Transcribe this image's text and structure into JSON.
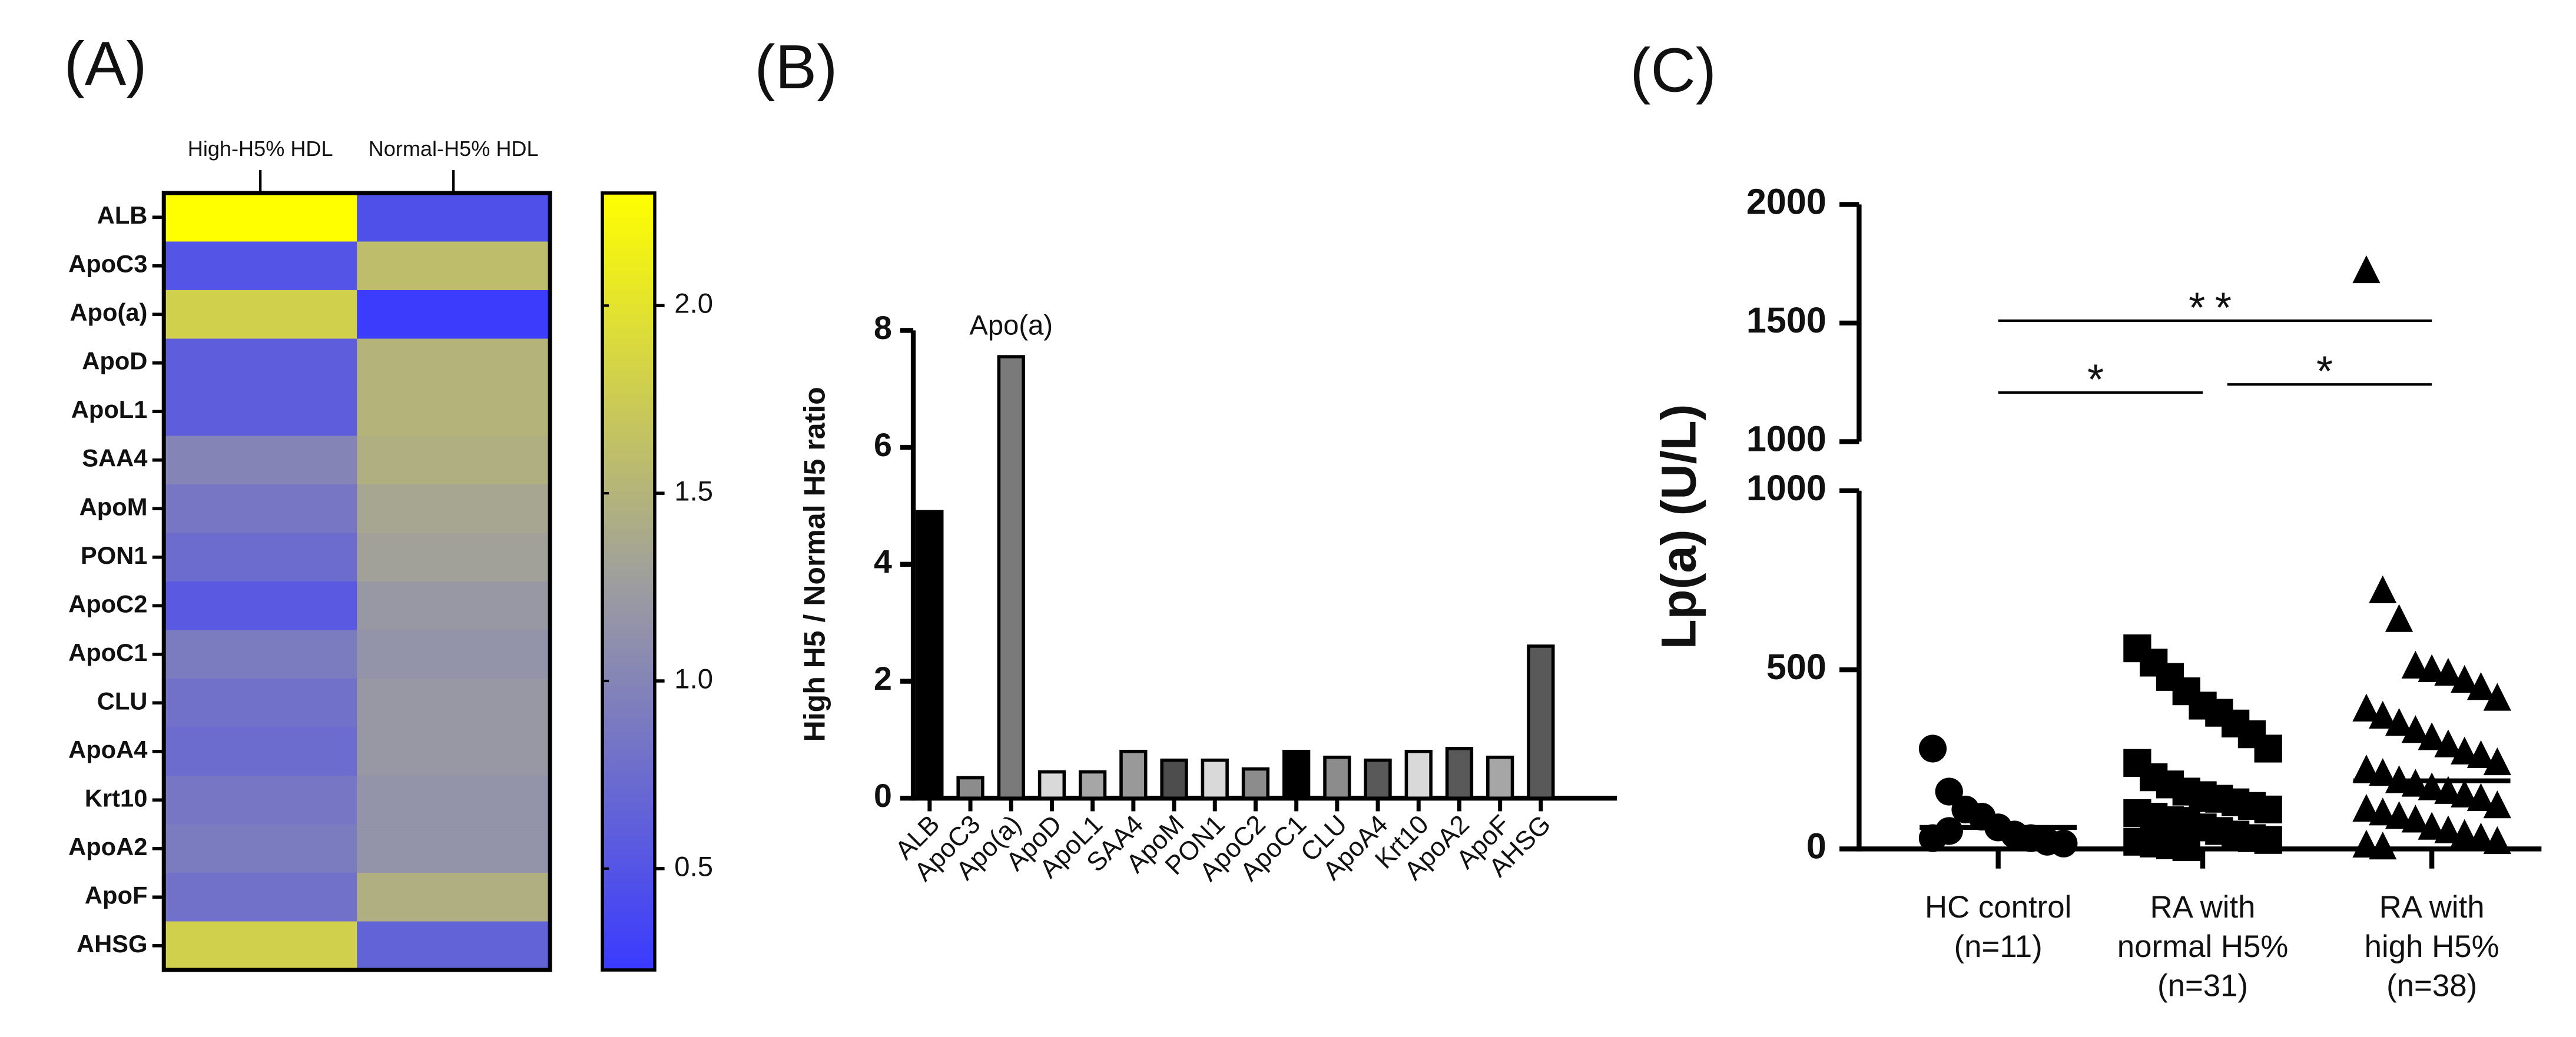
{
  "chart_data": [
    {
      "type": "heatmap",
      "title": "(A)",
      "rows": [
        "ALB",
        "ApoC3",
        "Apo(a)",
        "ApoD",
        "ApoL1",
        "SAA4",
        "ApoM",
        "PON1",
        "ApoC2",
        "ApoC1",
        "CLU",
        "ApoA4",
        "Krt10",
        "ApoA2",
        "ApoF",
        "AHSG"
      ],
      "columns": [
        "High-H5% HDL",
        "Normal-H5% HDL"
      ],
      "values": [
        [
          2.3,
          0.45
        ],
        [
          0.5,
          1.6
        ],
        [
          1.8,
          0.25
        ],
        [
          0.6,
          1.5
        ],
        [
          0.6,
          1.5
        ],
        [
          1.0,
          1.45
        ],
        [
          0.85,
          1.35
        ],
        [
          0.75,
          1.3
        ],
        [
          0.55,
          1.2
        ],
        [
          0.9,
          1.15
        ],
        [
          0.8,
          1.2
        ],
        [
          0.75,
          1.2
        ],
        [
          0.85,
          1.15
        ],
        [
          0.9,
          1.15
        ],
        [
          0.8,
          1.45
        ],
        [
          1.8,
          0.65
        ]
      ],
      "clim": [
        0.23,
        2.3
      ],
      "cticks": [
        0.5,
        {
          "value": 1.0,
          "label": "1.0"
        },
        1.5,
        {
          "value": 2.0,
          "label": "2.0"
        }
      ],
      "colormap": [
        "#3a3aff",
        "#9e9e9e",
        "#ffff00"
      ]
    },
    {
      "type": "bar",
      "title": "(B)",
      "ylabel": "High H5 / Normal H5 ratio",
      "categories": [
        "ALB",
        "ApoC3",
        "Apo(a)",
        "ApoD",
        "ApoL1",
        "SAA4",
        "ApoM",
        "PON1",
        "ApoC2",
        "ApoC1",
        "CLU",
        "ApoA4",
        "Krt10",
        "ApoA2",
        "ApoF",
        "AHSG"
      ],
      "values": [
        4.9,
        0.35,
        7.55,
        0.45,
        0.45,
        0.8,
        0.65,
        0.65,
        0.5,
        0.8,
        0.7,
        0.65,
        0.8,
        0.85,
        0.7,
        2.6
      ],
      "colors": [
        "#000000",
        "#8c8c8c",
        "#7a7a7a",
        "#d9d9d9",
        "#a6a6a6",
        "#999999",
        "#4d4d4d",
        "#d9d9d9",
        "#8c8c8c",
        "#000000",
        "#8c8c8c",
        "#595959",
        "#d9d9d9",
        "#595959",
        "#a6a6a6",
        "#595959"
      ],
      "annotation": "Apo(a)",
      "ylim": [
        0,
        8
      ],
      "yticks": [
        0,
        2,
        4,
        6,
        8
      ]
    },
    {
      "type": "scatter",
      "title": "(C)",
      "ylabel": "Lp(a) (U/L)",
      "categories": [
        [
          "HC control",
          "(n=11)"
        ],
        [
          "RA with",
          "normal H5%",
          "(n=31)"
        ],
        [
          "RA with",
          "high H5%",
          "(n=38)"
        ]
      ],
      "series": [
        {
          "marker": "circle",
          "color": "#000000",
          "values": [
            280,
            160,
            110,
            90,
            60,
            40,
            30,
            20,
            15,
            30,
            50
          ]
        },
        {
          "marker": "square",
          "color": "#000000",
          "values": [
            560,
            520,
            480,
            440,
            400,
            380,
            350,
            320,
            280,
            240,
            200,
            180,
            160,
            150,
            140,
            130,
            120,
            110,
            100,
            90,
            80,
            70,
            60,
            50,
            40,
            30,
            25,
            20,
            15,
            10,
            5
          ]
        },
        {
          "marker": "triangle",
          "color": "#000000",
          "values": [
            1720,
            720,
            640,
            510,
            500,
            490,
            470,
            450,
            420,
            390,
            370,
            350,
            330,
            310,
            290,
            270,
            260,
            240,
            220,
            210,
            190,
            180,
            170,
            160,
            150,
            140,
            120,
            110,
            100,
            90,
            80,
            60,
            50,
            40,
            30,
            20,
            10,
            5
          ]
        }
      ],
      "means": [
        60,
        110,
        190
      ],
      "segments": [
        {
          "ylim": [
            0,
            1000
          ],
          "yticks": [
            0,
            500,
            1000
          ]
        },
        {
          "ylim": [
            1000,
            2000
          ],
          "yticks": [
            1000,
            1500,
            2000
          ]
        }
      ],
      "significance": [
        {
          "label": "**",
          "from": 0,
          "to": 2,
          "y": 1510
        },
        {
          "label": "*",
          "from": 0,
          "to": 1,
          "y": 1207
        },
        {
          "label": "*",
          "from": 1,
          "to": 2,
          "y": 1241
        }
      ]
    }
  ]
}
